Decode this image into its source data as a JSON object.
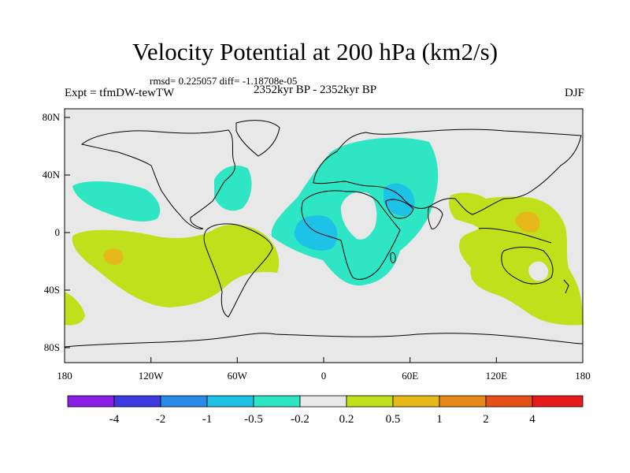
{
  "title": "Velocity Potential at 200 hPa (km2/s)",
  "stats": "rmsd= 0.225057 diff= -1.18708e-05",
  "experiment": "Expt = tfmDW-tewTW",
  "period": "2352kyr BP - 2352kyr BP",
  "season": "DJF",
  "axes": {
    "x_ticks": [
      {
        "lon": -180,
        "label": "180"
      },
      {
        "lon": -120,
        "label": "120W"
      },
      {
        "lon": -60,
        "label": "60W"
      },
      {
        "lon": 0,
        "label": "0"
      },
      {
        "lon": 60,
        "label": "60E"
      },
      {
        "lon": 120,
        "label": "120E"
      },
      {
        "lon": 180,
        "label": "180"
      }
    ],
    "y_ticks": [
      {
        "lat": 80,
        "label": "80N"
      },
      {
        "lat": 40,
        "label": "40N"
      },
      {
        "lat": 0,
        "label": "0"
      },
      {
        "lat": -40,
        "label": "40S"
      },
      {
        "lat": -80,
        "label": "80S"
      }
    ]
  },
  "colorbar": {
    "colors": [
      "#8a1ee6",
      "#3a3ae0",
      "#2a8ae6",
      "#1ec2e6",
      "#2ee6c4",
      "#e8e8e8",
      "#bfe01a",
      "#e6b81a",
      "#e68a1a",
      "#e6501a",
      "#e61a1a"
    ],
    "labels": [
      "-4",
      "-2",
      "-1",
      "-0.5",
      "-0.2",
      "0.2",
      "0.5",
      "1",
      "2",
      "4"
    ]
  },
  "chart_data": {
    "type": "heatmap",
    "title": "Velocity Potential at 200 hPa (km2/s)",
    "projection": "cylindrical equidistant",
    "lon_range": [
      -180,
      180
    ],
    "lat_range": [
      -90,
      90
    ],
    "levels": [
      -4,
      -2,
      -1,
      -0.5,
      -0.2,
      0.2,
      0.5,
      1,
      2,
      4
    ],
    "regions": [
      {
        "name": "negative anomaly, Atlantic / Africa / Europe / Middle East",
        "class": "-0.5 to -0.2",
        "lon_range": [
          -40,
          80
        ],
        "lat_range": [
          -40,
          70
        ]
      },
      {
        "name": "negative anomaly core, equatorial Atlantic",
        "class": "-1 to -0.5",
        "lon": -10,
        "lat": 2
      },
      {
        "name": "negative anomaly core, Middle East",
        "class": "-1 to -0.5",
        "lon": 52,
        "lat": 30
      },
      {
        "name": "negative anomaly, North Atlantic",
        "class": "-0.5 to -0.2",
        "lon": -70,
        "lat": 40
      },
      {
        "name": "negative anomaly, North Pacific",
        "class": "-0.5 to -0.2",
        "lon": -150,
        "lat": 30
      },
      {
        "name": "positive anomaly, South Pacific to South America",
        "class": "0.2 to 0.5",
        "lon_range": [
          -180,
          -30
        ],
        "lat_range": [
          -60,
          5
        ]
      },
      {
        "name": "positive anomaly core, South Pacific",
        "class": "0.5 to 1",
        "lon": -145,
        "lat": -15
      },
      {
        "name": "positive anomaly, Maritime Continent / West Pacific / Australia",
        "class": "0.2 to 0.5",
        "lon_range": [
          90,
          180
        ],
        "lat_range": [
          -65,
          30
        ]
      },
      {
        "name": "positive anomaly core, West Pacific",
        "class": "0.5 to 1",
        "lon": 135,
        "lat": 8
      }
    ]
  }
}
